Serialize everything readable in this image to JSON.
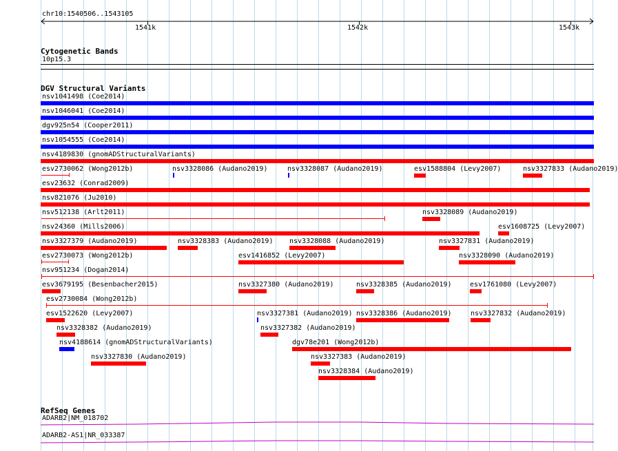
{
  "colors": {
    "grid": "#b9dbe9",
    "red": "#ff0000",
    "blue": "#0000ff",
    "gene": "#c000c0"
  },
  "ruler": {
    "region": "chr10:1540506..1543105",
    "tick_labels": [
      "1541k",
      "1542k",
      "1543k"
    ]
  },
  "cytoband": {
    "title": "Cytogenetic Bands",
    "band": "10p15.3"
  },
  "dgv": {
    "title": "DGV Structural Variants",
    "labels": [
      "nsv1041498 (Coe2014)",
      "nsv1046041 (Coe2014)",
      "dgv925n54 (Cooper2011)",
      "nsv1054555 (Coe2014)",
      "nsv4189830 (gnomADStructuralVariants)",
      "esv2730062 (Wong2012b)",
      "nsv3328086 (Audano2019)",
      "nsv3328087 (Audano2019)",
      "esv1588804 (Levy2007)",
      "nsv3327833 (Audano2019)",
      "esv23632 (Conrad2009)",
      "nsv821076 (Ju2010)",
      "nsv512138 (Arlt2011)",
      "nsv3328089 (Audano2019)",
      "nsv24360 (Mills2006)",
      "esv1608725 (Levy2007)",
      "nsv3327379 (Audano2019)",
      "nsv3328383 (Audano2019)",
      "nsv3328088 (Audano2019)",
      "nsv3327831 (Audano2019)",
      "esv2730073 (Wong2012b)",
      "esv1416852 (Levy2007)",
      "nsv3328090 (Audano2019)",
      "nsv951234 (Dogan2014)",
      "esv3679195 (Besenbacher2015)",
      "nsv3327380 (Audano2019)",
      "nsv3328385 (Audano2019)",
      "esv1761080 (Levy2007)",
      "esv2730084 (Wong2012b)",
      "esv1522620 (Levy2007)",
      "nsv3327381 (Audano2019)",
      "nsv3328386 (Audano2019)",
      "nsv3327832 (Audano2019)",
      "nsv3328382 (Audano2019)",
      "nsv3327382 (Audano2019)",
      "nsv4188614 (gnomADStructuralVariants)",
      "dgv78e201 (Wong2012b)",
      "nsv3327830 (Audano2019)",
      "nsv3327383 (Audano2019)",
      "nsv3328384 (Audano2019)"
    ]
  },
  "refseq": {
    "title": "RefSeq Genes",
    "genes": [
      "ADARB2|NM_018702",
      "ADARB2-AS1|NR_033387"
    ]
  }
}
